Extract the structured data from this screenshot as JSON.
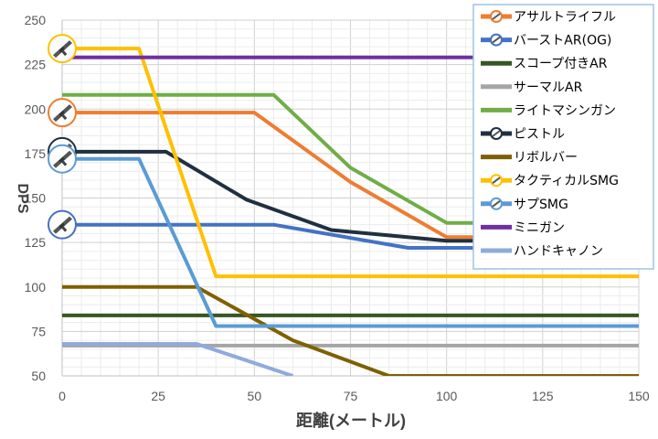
{
  "chart_data": {
    "type": "line",
    "title": "",
    "xlabel": "距離(メートル)",
    "ylabel": "DPS",
    "xlim": [
      0,
      150
    ],
    "ylim": [
      50,
      250
    ],
    "x_ticks": [
      "0",
      "25",
      "50",
      "75",
      "100",
      "125",
      "150"
    ],
    "y_ticks": [
      "50",
      "75",
      "100",
      "125",
      "150",
      "175",
      "200",
      "225",
      "250"
    ],
    "grid": true,
    "legend_position": "top-right",
    "series": [
      {
        "name": "アサルトライフル",
        "color": "#ED7D31",
        "marker_icon": "assault-rifle-icon",
        "points": [
          [
            0,
            198
          ],
          [
            50,
            198
          ],
          [
            75,
            159
          ],
          [
            100,
            128
          ],
          [
            150,
            128
          ]
        ]
      },
      {
        "name": "バーストAR(OG)",
        "color": "#4472C4",
        "marker_icon": "burst-rifle-icon",
        "points": [
          [
            0,
            135
          ],
          [
            55,
            135
          ],
          [
            90,
            122
          ],
          [
            150,
            122
          ]
        ]
      },
      {
        "name": "スコープ付きAR",
        "color": "#375623",
        "points": [
          [
            0,
            84
          ],
          [
            150,
            84
          ]
        ]
      },
      {
        "name": "サーマルAR",
        "color": "#A5A5A5",
        "points": [
          [
            0,
            67
          ],
          [
            150,
            67
          ]
        ]
      },
      {
        "name": "ライトマシンガン",
        "color": "#70AD47",
        "points": [
          [
            0,
            208
          ],
          [
            55,
            208
          ],
          [
            75,
            167
          ],
          [
            100,
            136
          ],
          [
            150,
            136
          ]
        ]
      },
      {
        "name": "ピストル",
        "color": "#203040",
        "marker_icon": "pistol-icon",
        "points": [
          [
            0,
            176
          ],
          [
            27,
            176
          ],
          [
            48,
            149
          ],
          [
            70,
            132
          ],
          [
            100,
            126
          ],
          [
            150,
            126
          ]
        ]
      },
      {
        "name": "リボルバー",
        "color": "#7F6000",
        "points": [
          [
            0,
            100
          ],
          [
            35,
            100
          ],
          [
            60,
            70
          ],
          [
            85,
            50
          ],
          [
            150,
            50
          ]
        ]
      },
      {
        "name": "タクティカルSMG",
        "color": "#FFC000",
        "marker_icon": "tactical-smg-icon",
        "points": [
          [
            0,
            234
          ],
          [
            20,
            234
          ],
          [
            40,
            106
          ],
          [
            150,
            106
          ]
        ]
      },
      {
        "name": "サプSMG",
        "color": "#5B9BD5",
        "marker_icon": "suppressed-smg-icon",
        "points": [
          [
            0,
            172
          ],
          [
            20,
            172
          ],
          [
            40,
            78
          ],
          [
            150,
            78
          ]
        ]
      },
      {
        "name": "ミニガン",
        "color": "#7030A0",
        "points": [
          [
            0,
            229
          ],
          [
            150,
            229
          ]
        ]
      },
      {
        "name": "ハンドキャノン",
        "color": "#8FAADC",
        "points": [
          [
            0,
            68
          ],
          [
            35,
            68
          ],
          [
            60,
            50
          ]
        ]
      }
    ]
  }
}
